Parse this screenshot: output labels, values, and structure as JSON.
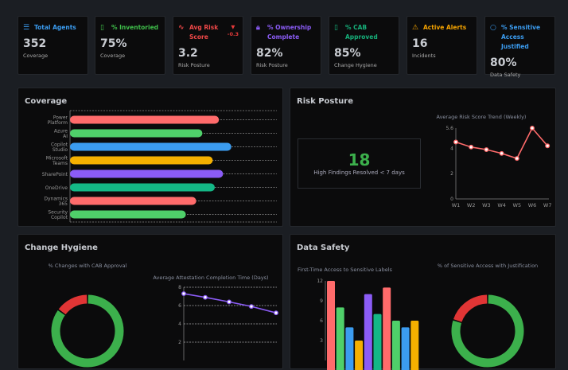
{
  "kpis": [
    {
      "title": "Total Agents",
      "value": "352",
      "sub": "Coverage",
      "icon": "database-icon",
      "glyph": "☰",
      "color": "#3b9cf0"
    },
    {
      "title": "% Inventoried",
      "value": "75%",
      "sub": "Coverage",
      "icon": "file-check-icon",
      "glyph": "▯",
      "color": "#3fbf4a"
    },
    {
      "title": "Avg Risk Score",
      "value": "3.2",
      "sub": "Risk Posture",
      "icon": "activity-icon",
      "glyph": "∿",
      "color": "#f04848",
      "delta": "-0.3"
    },
    {
      "title": "% Ownership Complete",
      "value": "82%",
      "sub": "Risk Posture",
      "icon": "lock-icon",
      "glyph": "🔒︎",
      "color": "#8b5cf6"
    },
    {
      "title": "% CAB Approved",
      "value": "85%",
      "sub": "Change Hygiene",
      "icon": "file-check-icon",
      "glyph": "▯",
      "color": "#16b07a"
    },
    {
      "title": "Active Alerts",
      "value": "16",
      "sub": "Incidents",
      "icon": "alert-triangle-icon",
      "glyph": "⚠",
      "color": "#f5a300"
    },
    {
      "title": "% Sensitive Access Justified",
      "value": "80%",
      "sub": "Data Safety",
      "icon": "shield-icon",
      "glyph": "○",
      "color": "#3b9cf0"
    }
  ],
  "coverage": {
    "title": "Coverage"
  },
  "risk": {
    "title": "Risk Posture",
    "big_value": "18",
    "big_label": "High Findings Resolved < 7 days"
  },
  "hygiene": {
    "title": "Change Hygiene"
  },
  "safety": {
    "title": "Data Safety"
  },
  "chart_data": [
    {
      "type": "bar",
      "orientation": "horizontal",
      "categories": [
        "Power Platform",
        "Azure AI",
        "Copilot Studio",
        "Microsoft Teams",
        "SharePoint",
        "OneDrive",
        "Dynamics 365",
        "Security Copilot"
      ],
      "values": [
        72,
        64,
        78,
        69,
        74,
        70,
        61,
        56
      ],
      "colors": [
        "#ff6b6b",
        "#4fd06a",
        "#3b9cf0",
        "#f5b000",
        "#8b5cf6",
        "#14b886",
        "#ff6b6b",
        "#4fd06a"
      ],
      "xlim": [
        0,
        100
      ],
      "grid": true
    },
    {
      "type": "line",
      "title": "Average Risk Score Trend (Weekly)",
      "categories": [
        "W1",
        "W2",
        "W3",
        "W4",
        "W5",
        "W6",
        "W7"
      ],
      "values": [
        4.5,
        4.1,
        3.9,
        3.6,
        3.2,
        5.6,
        4.2
      ],
      "yticks": [
        "0",
        "2",
        "4",
        "5.6"
      ],
      "ylim": [
        0,
        5.6
      ],
      "color": "#ff6b6b"
    },
    {
      "type": "pie",
      "title": "% Changes with CAB Approval",
      "values": [
        85,
        15
      ],
      "colors": [
        "#3cb04c",
        "#e03535"
      ]
    },
    {
      "type": "line",
      "title": "Average Attestation Completion Time (Days)",
      "values": [
        7.3,
        6.9,
        6.4,
        5.9,
        5.2
      ],
      "yticks": [
        "2",
        "4",
        "6",
        "8"
      ],
      "ylim": [
        0,
        8
      ],
      "color": "#8b5cf6",
      "grid": true
    },
    {
      "type": "bar",
      "title": "First-Time Access to Sensitive Labels",
      "values": [
        12,
        8,
        5,
        3,
        10,
        7,
        11,
        6,
        5,
        6
      ],
      "colors": [
        "#ff6b6b",
        "#4fd06a",
        "#3b9cf0",
        "#f5b000",
        "#8b5cf6",
        "#14b886",
        "#ff6b6b",
        "#4fd06a",
        "#3b9cf0",
        "#f5b000"
      ],
      "yticks": [
        "3",
        "6",
        "9",
        "12"
      ],
      "ylim": [
        0,
        12
      ]
    },
    {
      "type": "pie",
      "title": "% of Sensitive Access with Justification",
      "values": [
        80,
        20
      ],
      "colors": [
        "#3cb04c",
        "#e03535"
      ]
    }
  ]
}
